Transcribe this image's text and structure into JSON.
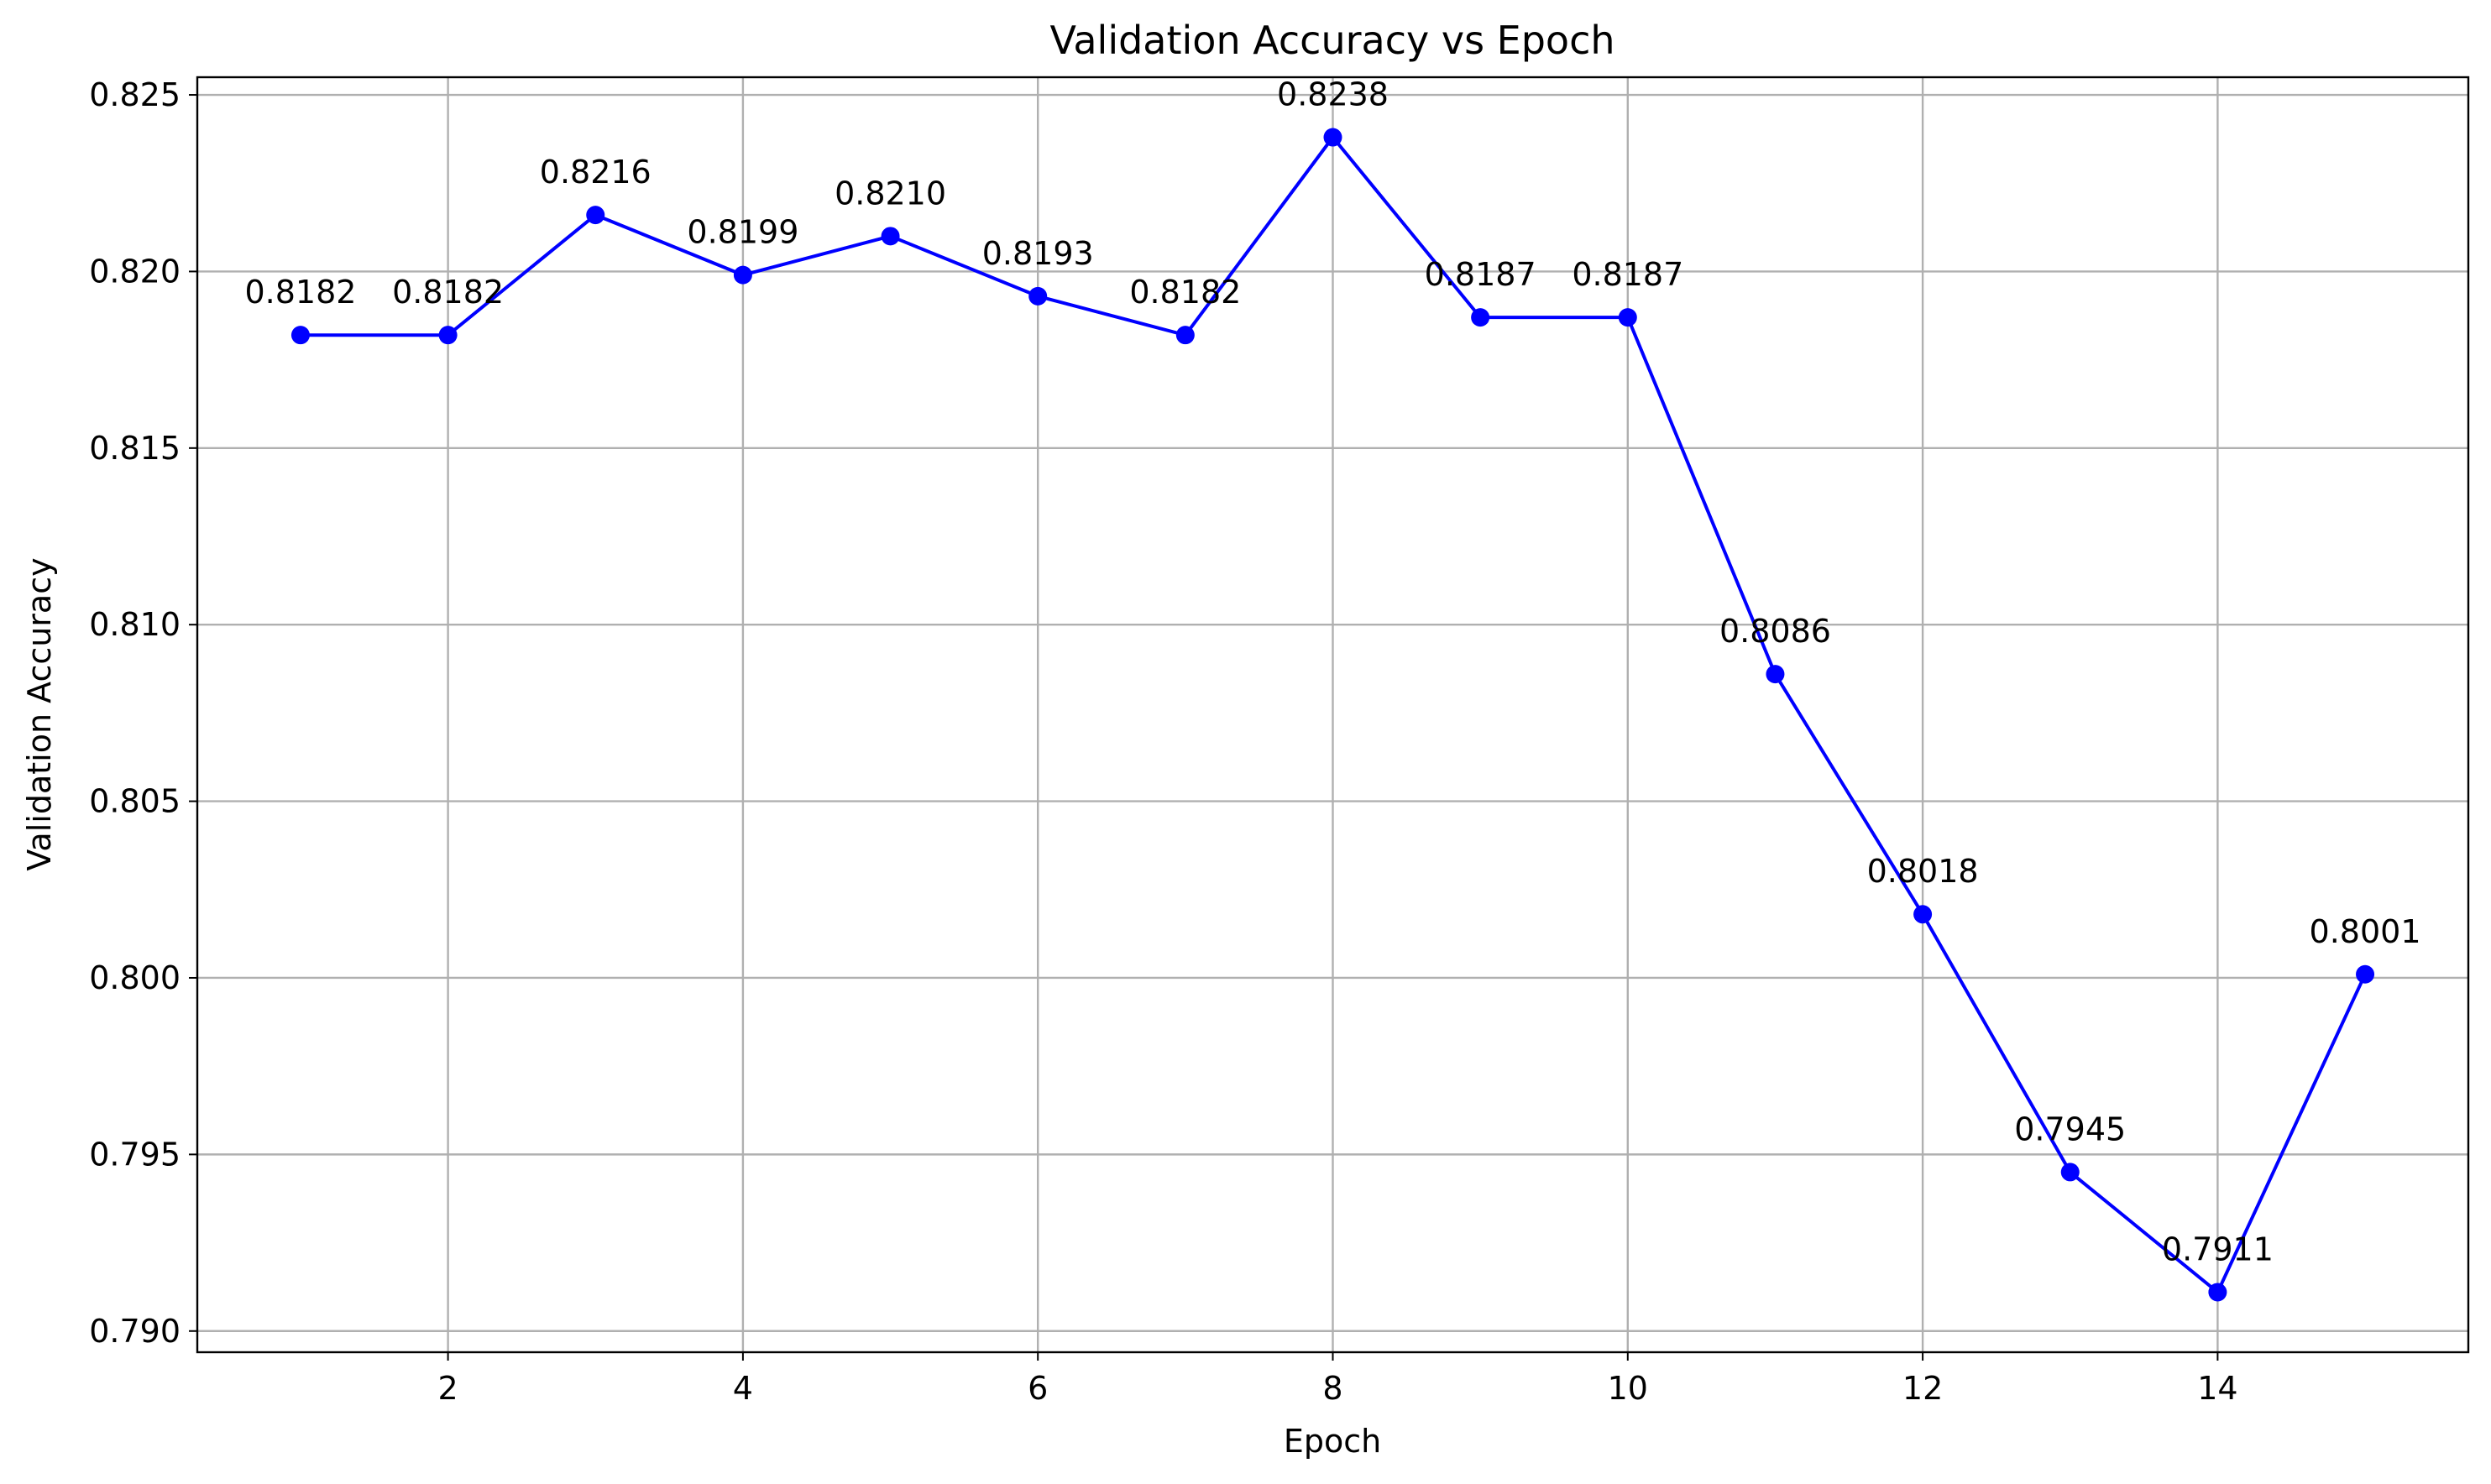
{
  "chart_data": {
    "type": "line",
    "title": "Validation Accuracy vs Epoch",
    "xlabel": "Epoch",
    "ylabel": "Validation Accuracy",
    "x": [
      1,
      2,
      3,
      4,
      5,
      6,
      7,
      8,
      9,
      10,
      11,
      12,
      13,
      14,
      15
    ],
    "series": [
      {
        "values": [
          0.8182,
          0.8182,
          0.8216,
          0.8199,
          0.821,
          0.8193,
          0.8182,
          0.8238,
          0.8187,
          0.8187,
          0.8086,
          0.8018,
          0.7945,
          0.7911,
          0.8001
        ],
        "labels": [
          "0.8182",
          "0.8182",
          "0.8216",
          "0.8199",
          "0.8210",
          "0.8193",
          "0.8182",
          "0.8238",
          "0.8187",
          "0.8187",
          "0.8086",
          "0.8018",
          "0.7945",
          "0.7911",
          "0.8001"
        ],
        "color": "#0000ff",
        "marker": "circle"
      }
    ],
    "xlim": [
      0.3,
      15.7
    ],
    "ylim": [
      0.7894,
      0.8255
    ],
    "xticks": [
      2,
      4,
      6,
      8,
      10,
      12,
      14
    ],
    "xtick_labels": [
      "2",
      "4",
      "6",
      "8",
      "10",
      "12",
      "14"
    ],
    "yticks": [
      0.79,
      0.795,
      0.8,
      0.805,
      0.81,
      0.815,
      0.82,
      0.825
    ],
    "ytick_labels": [
      "0.790",
      "0.795",
      "0.800",
      "0.805",
      "0.810",
      "0.815",
      "0.820",
      "0.825"
    ],
    "grid": true,
    "legend": "none"
  }
}
